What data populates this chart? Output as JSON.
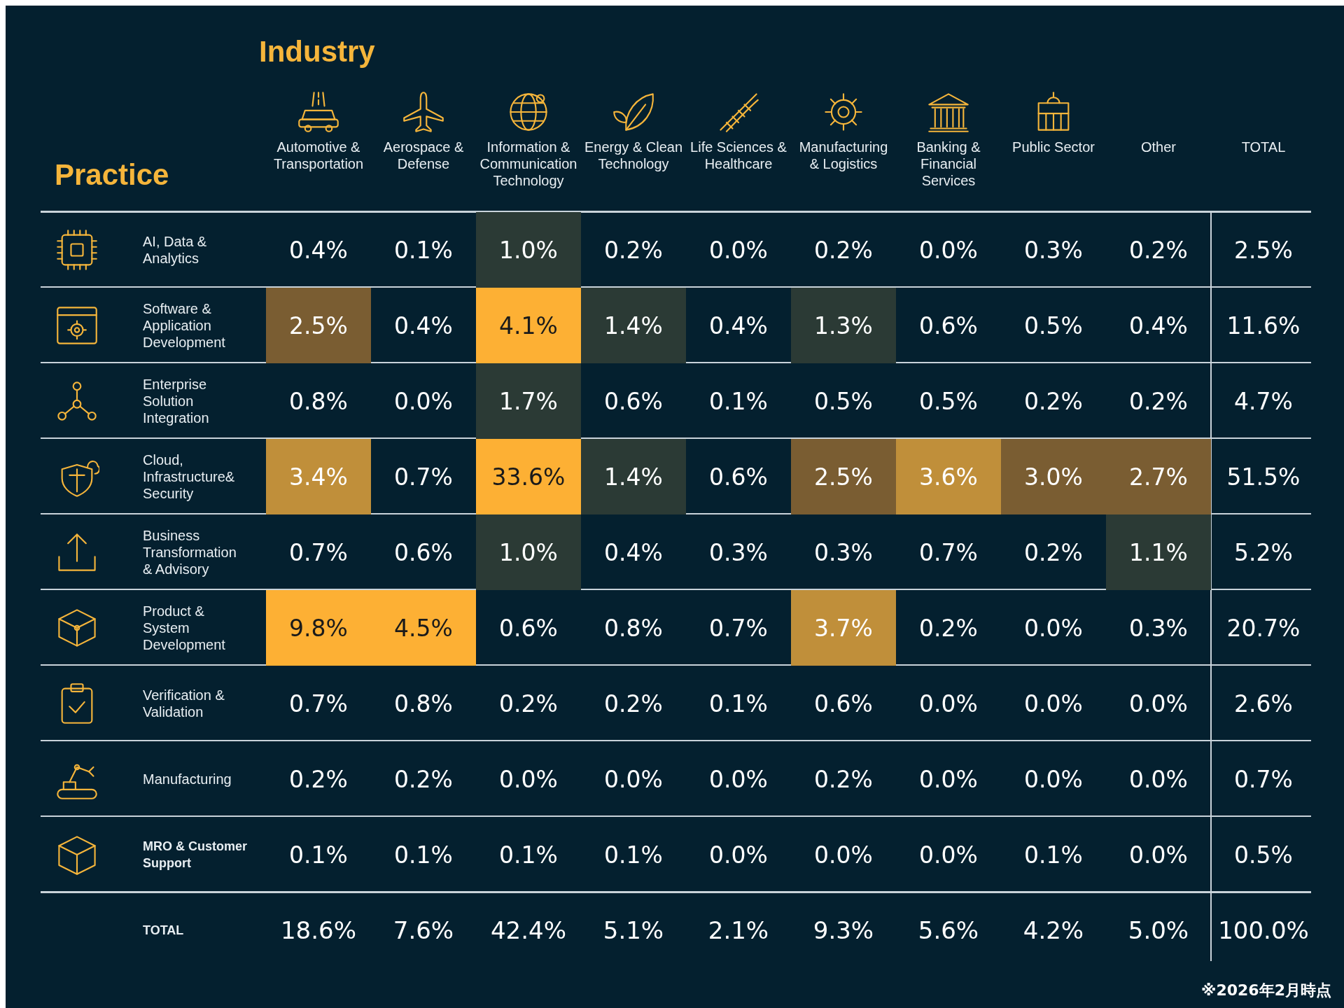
{
  "chart_data": {
    "type": "heatmap",
    "xlabel": "Industry",
    "ylabel": "Practice",
    "categories": [
      "Automotive & Transportation",
      "Aerospace & Defense",
      "Information & Communication Technology",
      "Energy & Clean Technology",
      "Life Sciences & Healthcare",
      "Manufacturing & Logistics",
      "Banking & Financial Services",
      "Public Sector",
      "Other",
      "TOTAL"
    ],
    "y_categories": [
      "AI, Data & Analytics",
      "Software & Application Development",
      "Enterprise Solution Integration",
      "Cloud, Infrastructure& Security",
      "Business Transformation & Advisory",
      "Product & System Development",
      "Verification & Validation",
      "Manufacturing",
      "MRO & Customer Support",
      "TOTAL"
    ],
    "cells": [
      [
        0.4,
        0.1,
        1.0,
        0.2,
        0.0,
        0.2,
        0.0,
        0.3,
        0.2,
        2.5
      ],
      [
        2.5,
        0.4,
        4.1,
        1.4,
        0.4,
        1.3,
        0.6,
        0.5,
        0.4,
        11.6
      ],
      [
        0.8,
        0.0,
        1.7,
        0.6,
        0.1,
        0.5,
        0.5,
        0.2,
        0.2,
        4.7
      ],
      [
        3.4,
        0.7,
        33.6,
        1.4,
        0.6,
        2.5,
        3.6,
        3.0,
        2.7,
        51.5
      ],
      [
        0.7,
        0.6,
        1.0,
        0.4,
        0.3,
        0.3,
        0.7,
        0.2,
        1.1,
        5.2
      ],
      [
        9.8,
        4.5,
        0.6,
        0.8,
        0.7,
        3.7,
        0.2,
        0.0,
        0.3,
        20.7
      ],
      [
        0.7,
        0.8,
        0.2,
        0.2,
        0.1,
        0.6,
        0.0,
        0.0,
        0.0,
        2.6
      ],
      [
        0.2,
        0.2,
        0.0,
        0.0,
        0.0,
        0.2,
        0.0,
        0.0,
        0.0,
        0.7
      ],
      [
        0.1,
        0.1,
        0.1,
        0.1,
        0.0,
        0.0,
        0.0,
        0.1,
        0.0,
        0.5
      ],
      [
        18.6,
        7.6,
        42.4,
        5.1,
        2.1,
        9.3,
        5.6,
        4.2,
        5.0,
        100.0
      ]
    ],
    "cell_labels": [
      [
        "0.4%",
        "0.1%",
        "1.0%",
        "0.2%",
        "0.0%",
        "0.2%",
        "0.0%",
        "0.3%",
        "0.2%",
        "2.5%"
      ],
      [
        "2.5%",
        "0.4%",
        "4.1%",
        "1.4%",
        "0.4%",
        "1.3%",
        "0.6%",
        "0.5%",
        "0.4%",
        "11.6%"
      ],
      [
        "0.8%",
        "0.0%",
        "1.7%",
        "0.6%",
        "0.1%",
        "0.5%",
        "0.5%",
        "0.2%",
        "0.2%",
        "4.7%"
      ],
      [
        "3.4%",
        "0.7%",
        "33.6%",
        "1.4%",
        "0.6%",
        "2.5%",
        "3.6%",
        "3.0%",
        "2.7%",
        "51.5%"
      ],
      [
        "0.7%",
        "0.6%",
        "1.0%",
        "0.4%",
        "0.3%",
        "0.3%",
        "0.7%",
        "0.2%",
        "1.1%",
        "5.2%"
      ],
      [
        "9.8%",
        "4.5%",
        "0.6%",
        "0.8%",
        "0.7%",
        "3.7%",
        "0.2%",
        "0.0%",
        "0.3%",
        "20.7%"
      ],
      [
        "0.7%",
        "0.8%",
        "0.2%",
        "0.2%",
        "0.1%",
        "0.6%",
        "0.0%",
        "0.0%",
        "0.0%",
        "2.6%"
      ],
      [
        "0.2%",
        "0.2%",
        "0.0%",
        "0.0%",
        "0.0%",
        "0.2%",
        "0.0%",
        "0.0%",
        "0.0%",
        "0.7%"
      ],
      [
        "0.1%",
        "0.1%",
        "0.1%",
        "0.1%",
        "0.0%",
        "0.0%",
        "0.0%",
        "0.1%",
        "0.0%",
        "0.5%"
      ],
      [
        "18.6%",
        "7.6%",
        "42.4%",
        "5.1%",
        "2.1%",
        "9.3%",
        "5.6%",
        "4.2%",
        "5.0%",
        "100.0%"
      ]
    ],
    "annotations": [
      "※2026年2月時点"
    ]
  }
}
